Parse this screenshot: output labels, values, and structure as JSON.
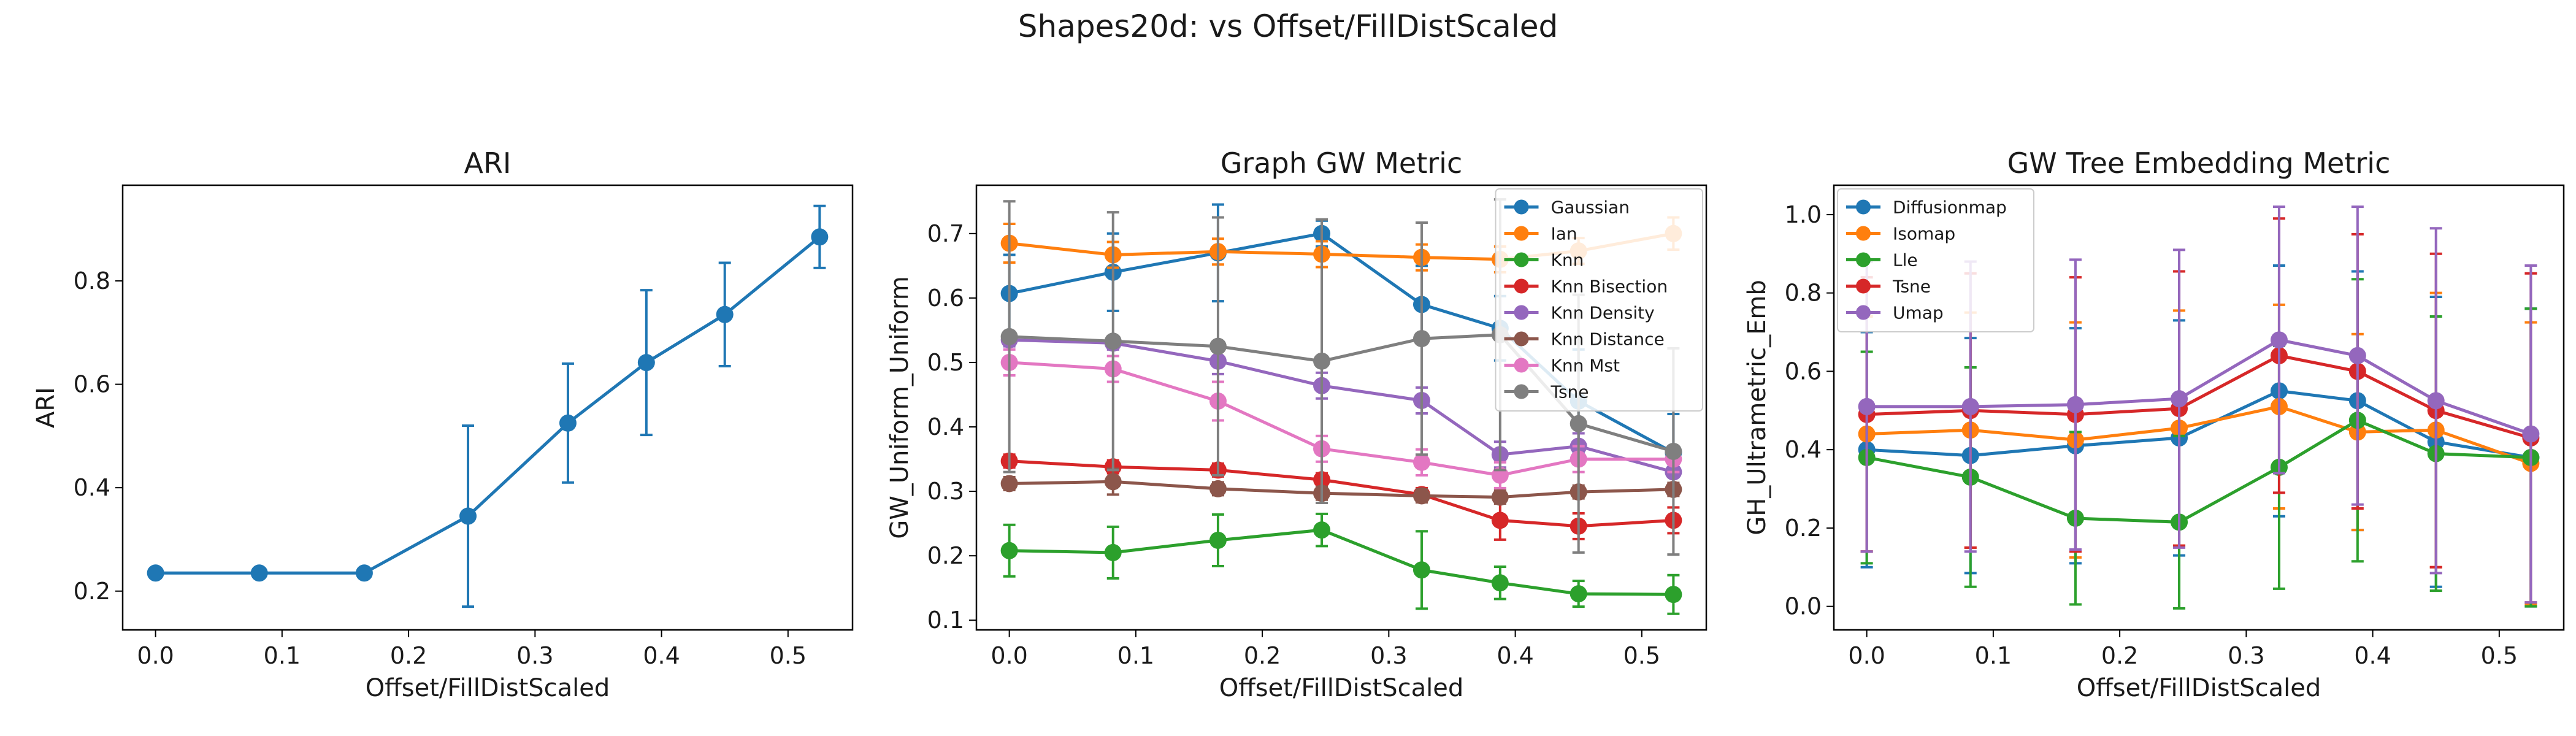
{
  "figure": {
    "suptitle": "Shapes20d: vs Offset/FillDistScaled"
  },
  "chart_data": [
    {
      "type": "line",
      "title": "ARI",
      "xlabel": "Offset/FillDistScaled",
      "ylabel": "ARI",
      "xlim": [
        -0.026,
        0.551
      ],
      "ylim": [
        0.125,
        0.985
      ],
      "xticks": [
        0.0,
        0.1,
        0.2,
        0.3,
        0.4,
        0.5
      ],
      "xtick_labels": [
        "0.0",
        "0.1",
        "0.2",
        "0.3",
        "0.4",
        "0.5"
      ],
      "yticks": [
        0.2,
        0.4,
        0.6,
        0.8
      ],
      "ytick_labels": [
        "0.2",
        "0.4",
        "0.6",
        "0.8"
      ],
      "x": [
        0.0,
        0.082,
        0.165,
        0.247,
        0.326,
        0.388,
        0.45,
        0.525
      ],
      "legend": null,
      "series": [
        {
          "name": "",
          "color": "#1f77b4",
          "values": [
            0.235,
            0.235,
            0.235,
            0.345,
            0.525,
            0.642,
            0.735,
            0.885
          ],
          "errors": [
            0.0,
            0.0,
            0.0,
            0.175,
            0.115,
            0.14,
            0.1,
            0.06
          ]
        }
      ]
    },
    {
      "type": "line",
      "title": "Graph GW Metric",
      "xlabel": "Offset/FillDistScaled",
      "ylabel": "GW_Uniform_Uniform",
      "xlim": [
        -0.026,
        0.551
      ],
      "ylim": [
        0.085,
        0.775
      ],
      "xticks": [
        0.0,
        0.1,
        0.2,
        0.3,
        0.4,
        0.5
      ],
      "xtick_labels": [
        "0.0",
        "0.1",
        "0.2",
        "0.3",
        "0.4",
        "0.5"
      ],
      "yticks": [
        0.1,
        0.2,
        0.3,
        0.4,
        0.5,
        0.6,
        0.7
      ],
      "ytick_labels": [
        "0.1",
        "0.2",
        "0.3",
        "0.4",
        "0.5",
        "0.6",
        "0.7"
      ],
      "x": [
        0.0,
        0.082,
        0.165,
        0.247,
        0.326,
        0.388,
        0.45,
        0.525
      ],
      "legend": "top-right",
      "series": [
        {
          "name": "Gaussian",
          "color": "#1f77b4",
          "values": [
            0.607,
            0.64,
            0.67,
            0.7,
            0.59,
            0.553,
            0.44,
            0.36
          ],
          "errors": [
            0.06,
            0.06,
            0.075,
            0.02,
            0.06,
            0.05,
            0.08,
            0.06
          ]
        },
        {
          "name": "Ian",
          "color": "#ff7f0e",
          "values": [
            0.685,
            0.667,
            0.672,
            0.668,
            0.663,
            0.66,
            0.673,
            0.7
          ],
          "errors": [
            0.03,
            0.02,
            0.02,
            0.02,
            0.02,
            0.02,
            0.02,
            0.025
          ]
        },
        {
          "name": "Knn",
          "color": "#2ca02c",
          "values": [
            0.208,
            0.205,
            0.224,
            0.24,
            0.178,
            0.158,
            0.141,
            0.14
          ],
          "errors": [
            0.04,
            0.04,
            0.04,
            0.025,
            0.06,
            0.025,
            0.02,
            0.03
          ]
        },
        {
          "name": "Knn Bisection",
          "color": "#d62728",
          "values": [
            0.347,
            0.338,
            0.333,
            0.318,
            0.295,
            0.255,
            0.246,
            0.255
          ],
          "errors": [
            0.01,
            0.01,
            0.01,
            0.01,
            0.01,
            0.03,
            0.02,
            0.02
          ]
        },
        {
          "name": "Knn Density",
          "color": "#9467bd",
          "values": [
            0.535,
            0.53,
            0.502,
            0.464,
            0.441,
            0.357,
            0.37,
            0.33
          ],
          "errors": [
            0.01,
            0.01,
            0.02,
            0.02,
            0.02,
            0.02,
            0.02,
            0.02
          ]
        },
        {
          "name": "Knn Distance",
          "color": "#8c564b",
          "values": [
            0.312,
            0.315,
            0.304,
            0.297,
            0.293,
            0.291,
            0.299,
            0.303
          ],
          "errors": [
            0.01,
            0.02,
            0.01,
            0.01,
            0.01,
            0.01,
            0.01,
            0.01
          ]
        },
        {
          "name": "Knn Mst",
          "color": "#e377c2",
          "values": [
            0.5,
            0.49,
            0.44,
            0.366,
            0.345,
            0.325,
            0.35,
            0.35
          ],
          "errors": [
            0.02,
            0.02,
            0.03,
            0.02,
            0.02,
            0.02,
            0.02,
            0.02
          ]
        },
        {
          "name": "Tsne",
          "color": "#7f7f7f",
          "values": [
            0.54,
            0.533,
            0.525,
            0.502,
            0.537,
            0.543,
            0.405,
            0.362
          ],
          "errors": [
            0.21,
            0.2,
            0.2,
            0.22,
            0.18,
            0.21,
            0.2,
            0.16
          ]
        }
      ]
    },
    {
      "type": "line",
      "title": "GW Tree Embedding Metric",
      "xlabel": "Offset/FillDistScaled",
      "ylabel": "GH_Ultrametric_Emb",
      "xlim": [
        -0.026,
        0.551
      ],
      "ylim": [
        -0.06,
        1.075
      ],
      "xticks": [
        0.0,
        0.1,
        0.2,
        0.3,
        0.4,
        0.5
      ],
      "xtick_labels": [
        "0.0",
        "0.1",
        "0.2",
        "0.3",
        "0.4",
        "0.5"
      ],
      "yticks": [
        0.0,
        0.2,
        0.4,
        0.6,
        0.8,
        1.0
      ],
      "ytick_labels": [
        "0.0",
        "0.2",
        "0.4",
        "0.6",
        "0.8",
        "1.0"
      ],
      "x": [
        0.0,
        0.082,
        0.165,
        0.247,
        0.326,
        0.388,
        0.45,
        0.525
      ],
      "legend": "top-left",
      "series": [
        {
          "name": "Diffusionmap",
          "color": "#1f77b4",
          "values": [
            0.4,
            0.385,
            0.41,
            0.43,
            0.55,
            0.525,
            0.42,
            0.38
          ],
          "errors": [
            0.3,
            0.3,
            0.3,
            0.3,
            0.32,
            0.33,
            0.37,
            0.38
          ]
        },
        {
          "name": "Isomap",
          "color": "#ff7f0e",
          "values": [
            0.44,
            0.45,
            0.425,
            0.455,
            0.51,
            0.445,
            0.45,
            0.365
          ],
          "errors": [
            0.3,
            0.3,
            0.3,
            0.3,
            0.26,
            0.25,
            0.35,
            0.36
          ]
        },
        {
          "name": "Lle",
          "color": "#2ca02c",
          "values": [
            0.38,
            0.33,
            0.225,
            0.215,
            0.355,
            0.475,
            0.39,
            0.38
          ],
          "errors": [
            0.27,
            0.28,
            0.22,
            0.22,
            0.31,
            0.36,
            0.35,
            0.38
          ]
        },
        {
          "name": "Tsne",
          "color": "#d62728",
          "values": [
            0.49,
            0.5,
            0.49,
            0.505,
            0.64,
            0.6,
            0.5,
            0.43
          ],
          "errors": [
            0.35,
            0.35,
            0.35,
            0.35,
            0.35,
            0.35,
            0.4,
            0.42
          ]
        },
        {
          "name": "Umap",
          "color": "#9467bd",
          "values": [
            0.51,
            0.51,
            0.515,
            0.53,
            0.68,
            0.64,
            0.525,
            0.44
          ],
          "errors": [
            0.37,
            0.37,
            0.37,
            0.38,
            0.34,
            0.38,
            0.44,
            0.43
          ]
        }
      ]
    }
  ]
}
